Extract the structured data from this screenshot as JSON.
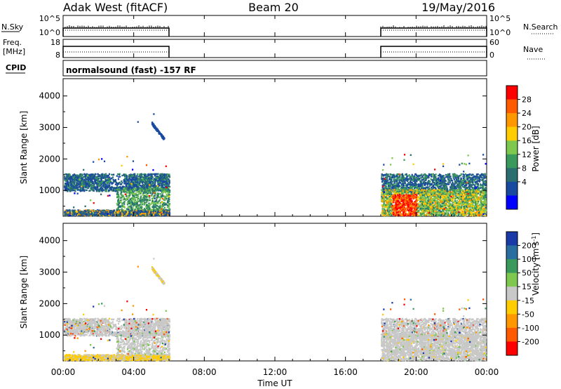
{
  "header": {
    "station": "Adak West (fitACF)",
    "beam": "Beam 20",
    "date": "19/May/2016"
  },
  "strips": {
    "nsky_label": "N.Sky",
    "nsky_ticks": [
      "10^5",
      "10^0"
    ],
    "nsearch_label": "N.Search",
    "nsearch_ticks": [
      "10^5",
      "10^0"
    ],
    "freq_label": "Freq.",
    "freq_unit": "[MHz]",
    "freq_ticks": [
      "18",
      "8"
    ],
    "nave_label": "Nave",
    "nave_ticks": [
      "60",
      "0"
    ],
    "cpid_label": "CPID",
    "cpid_text": "normalsound (fast) -157 RF"
  },
  "chart_data": [
    {
      "type": "heatmap",
      "name_shown": "Power",
      "ylabel": "Slant Range [km]",
      "yticks": [
        1000,
        2000,
        3000,
        4000
      ],
      "ylim": [
        180,
        4550
      ],
      "xlim": [
        0,
        24
      ],
      "xticks": [
        "00:00",
        "04:00",
        "08:00",
        "12:00",
        "16:00",
        "20:00",
        "00:00"
      ],
      "colorbar_label": "Power [dB]",
      "colorbar_ticks": [
        "28",
        "24",
        "20",
        "16",
        "12",
        "8",
        "4"
      ],
      "colorbar_colors": [
        "#ff0000",
        "#ff5a00",
        "#ff9800",
        "#ffcc00",
        "#7ec850",
        "#3a9a5c",
        "#2a6e70",
        "#1a4aa0",
        "#0000ff"
      ],
      "data_windows_hours": [
        [
          0,
          6
        ],
        [
          18,
          24
        ]
      ]
    },
    {
      "type": "heatmap",
      "name_shown": "Velocity",
      "ylabel": "Slant Range [km]",
      "yticks": [
        1000,
        2000,
        3000,
        4000
      ],
      "ylim": [
        180,
        4550
      ],
      "xlim": [
        0,
        24
      ],
      "xticks": [
        "00:00",
        "04:00",
        "08:00",
        "12:00",
        "16:00",
        "20:00",
        "00:00"
      ],
      "xlabel": "Time UT",
      "colorbar_label": "Velocity [m s^-1]",
      "colorbar_ticks": [
        "200",
        "100",
        "50",
        "15",
        "-15",
        "-50",
        "-100",
        "-200"
      ],
      "colorbar_colors": [
        "#1a3aa8",
        "#2a6ea0",
        "#3a9a5c",
        "#7ec850",
        "#c8c8c8",
        "#ffcc00",
        "#ff9800",
        "#ff5a00",
        "#ff0000"
      ],
      "data_windows_hours": [
        [
          0,
          6
        ],
        [
          18,
          24
        ]
      ]
    }
  ]
}
